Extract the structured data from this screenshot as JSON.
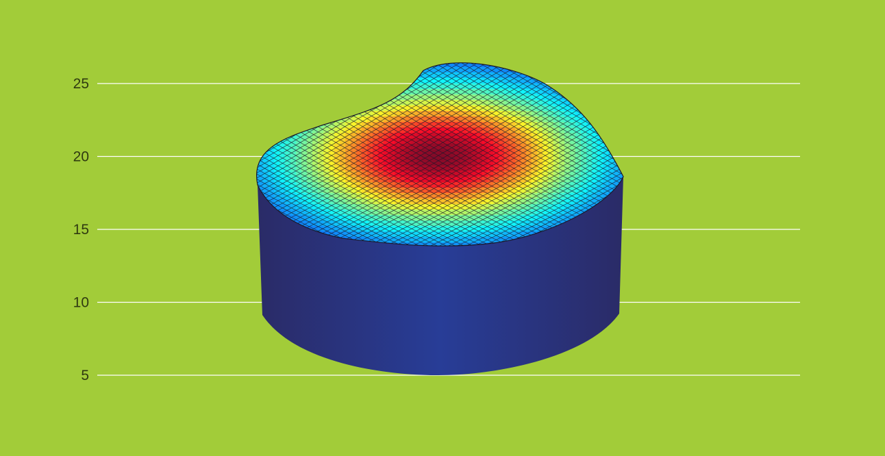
{
  "chart_data": {
    "type": "surface",
    "title": "",
    "xlabel": "",
    "ylabel": "",
    "ylim": [
      5,
      25
    ],
    "yticks": [
      5,
      10,
      15,
      20,
      25
    ],
    "ytick_labels": [
      "5",
      "10",
      "15",
      "20",
      "25"
    ],
    "grid": true,
    "legend": "none",
    "surface": {
      "base_level": 5,
      "side_bottom_level": 9,
      "top_edge_min": 15,
      "top_edge_max": 24,
      "peak_value": 20,
      "colormap": "jet"
    }
  },
  "colors": {
    "background": "#a2cc39",
    "gridline": "#ffffff",
    "tick_text": "#2f3a10",
    "side_dark": "#2a2b67",
    "side_light": "#283d97",
    "mesh_line": "#1a1a2a"
  }
}
